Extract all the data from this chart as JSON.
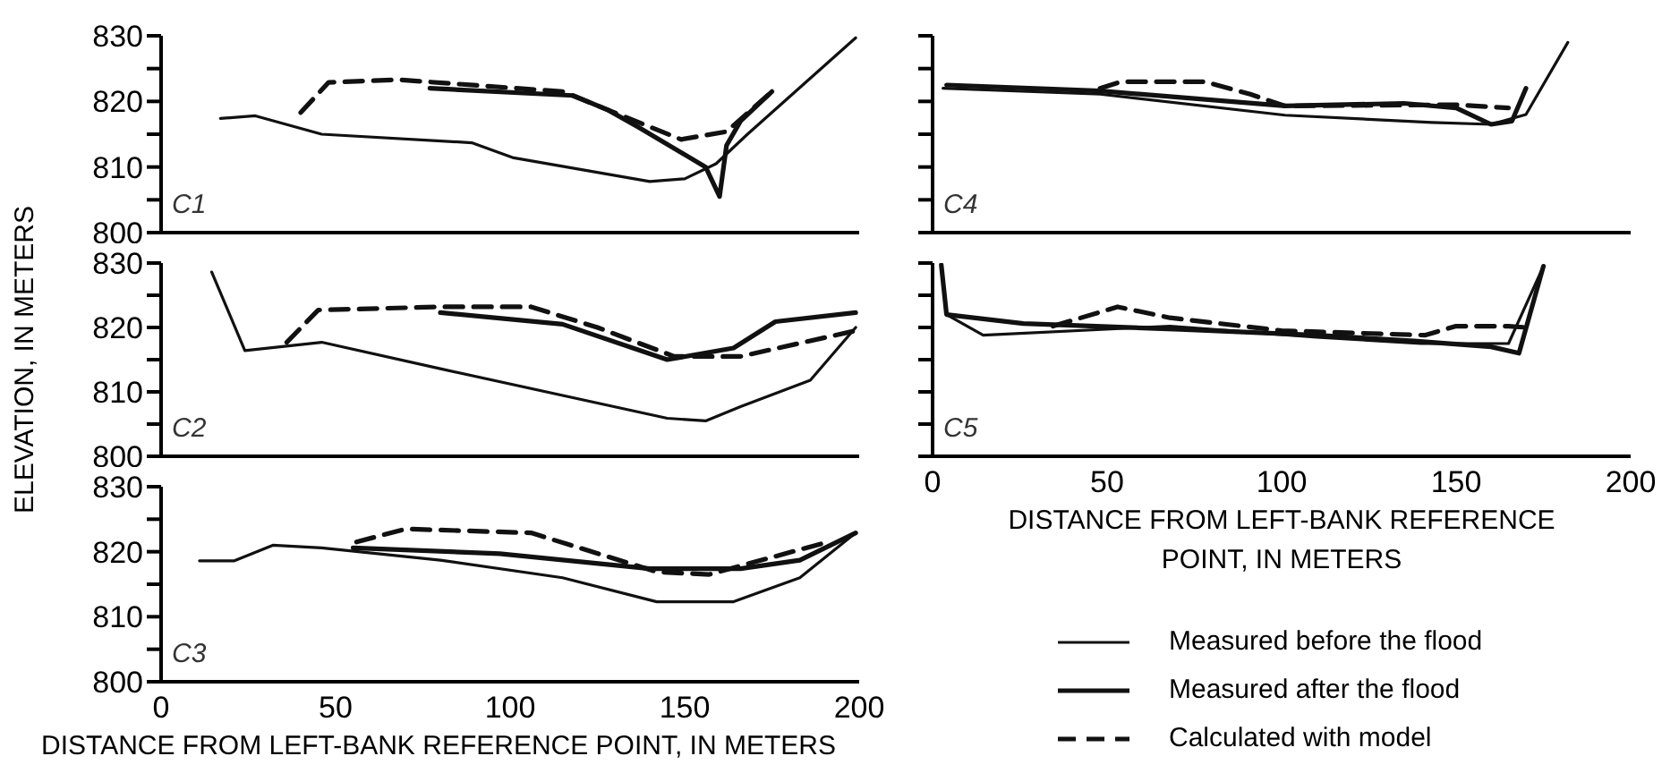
{
  "chart_data": [
    {
      "type": "line",
      "title": "C1",
      "xlim": [
        0,
        200
      ],
      "xticks": [
        0,
        50,
        100,
        150,
        200
      ],
      "ylim": [
        800,
        830
      ],
      "yticks": [
        800,
        {
          "value": 805,
          "label": null
        },
        810,
        {
          "value": 815,
          "label": null
        },
        820,
        {
          "value": 825,
          "label": null
        },
        830
      ],
      "tick_labels": "y",
      "series": [
        {
          "color": "#111111",
          "line_style": "solid",
          "x": [
            17,
            27,
            46,
            89,
            101,
            140,
            150,
            159,
            168,
            199
          ],
          "values": [
            817.4,
            817.8,
            815,
            813.7,
            811.4,
            807.8,
            808.2,
            810.5,
            815,
            829.7
          ]
        },
        {
          "color": "#111111",
          "line_style": "solid",
          "x": [
            77,
            118,
            128,
            137,
            156,
            160,
            162,
            166,
            175
          ],
          "values": [
            822,
            820.9,
            818.7,
            816,
            810,
            805.5,
            813.3,
            817,
            821.5
          ]
        },
        {
          "color": "#111111",
          "line_style": "dashed",
          "x": [
            40,
            48,
            68,
            115,
            128,
            149,
            162,
            175
          ],
          "values": [
            818.3,
            822.9,
            823.3,
            821.5,
            818.7,
            814.2,
            815.4,
            821.5
          ]
        }
      ]
    },
    {
      "type": "line",
      "title": "C2",
      "ylabel": "ELEVATION, IN METERS",
      "xlim": [
        0,
        200
      ],
      "xticks": [
        0,
        50,
        100,
        150,
        200
      ],
      "ylim": [
        800,
        830
      ],
      "yticks": [
        800,
        {
          "value": 805,
          "label": null
        },
        810,
        {
          "value": 815,
          "label": null
        },
        820,
        {
          "value": 825,
          "label": null
        },
        830
      ],
      "tick_labels": "y",
      "series": [
        {
          "color": "#111111",
          "line_style": "solid",
          "x": [
            14.5,
            24,
            46,
            80,
            145,
            156,
            166,
            186,
            199
          ],
          "values": [
            828.6,
            816.4,
            817.7,
            813.6,
            805.9,
            805.5,
            807.7,
            811.8,
            820
          ]
        },
        {
          "color": "#111111",
          "line_style": "solid",
          "x": [
            80,
            115,
            145,
            164,
            176,
            199
          ],
          "values": [
            822.3,
            820.5,
            815,
            816.8,
            820.9,
            822.3
          ]
        },
        {
          "color": "#111111",
          "line_style": "dashed",
          "x": [
            36,
            45,
            80,
            106,
            125,
            147,
            166,
            199
          ],
          "values": [
            817.7,
            822.7,
            823.2,
            823.2,
            820,
            815.5,
            815.5,
            819.5
          ]
        }
      ]
    },
    {
      "type": "line",
      "title": "C3",
      "xlabel": "DISTANCE FROM LEFT-BANK REFERENCE POINT, IN METERS",
      "xlim": [
        0,
        200
      ],
      "xticks": [
        0,
        50,
        100,
        150,
        200
      ],
      "ylim": [
        800,
        830
      ],
      "yticks": [
        800,
        {
          "value": 805,
          "label": null
        },
        810,
        {
          "value": 815,
          "label": null
        },
        820,
        {
          "value": 825,
          "label": null
        },
        830
      ],
      "series": [
        {
          "color": "#111111",
          "line_style": "solid",
          "x": [
            11,
            21,
            32,
            46,
            80,
            115,
            142,
            164,
            183,
            199
          ],
          "values": [
            818.6,
            818.6,
            821,
            820.6,
            818.7,
            816,
            812.3,
            812.3,
            816,
            822.9
          ]
        },
        {
          "color": "#111111",
          "line_style": "solid",
          "x": [
            55,
            97,
            140,
            166,
            183,
            199
          ],
          "values": [
            820.6,
            819.7,
            817.4,
            817.4,
            818.7,
            822.9
          ]
        },
        {
          "color": "#111111",
          "line_style": "dashed",
          "x": [
            56,
            70,
            106,
            142,
            157,
            191
          ],
          "values": [
            821.5,
            823.5,
            822.9,
            816.9,
            816.5,
            821.5
          ]
        }
      ]
    },
    {
      "type": "line",
      "title": "C4",
      "xlim": [
        0,
        200
      ],
      "xticks": [
        0,
        50,
        100,
        150,
        200
      ],
      "ylim": [
        800,
        830
      ],
      "yticks": [
        800,
        {
          "value": 805,
          "label": null
        },
        810,
        {
          "value": 815,
          "label": null
        },
        820,
        {
          "value": 825,
          "label": null
        },
        830
      ],
      "tick_labels": false,
      "series": [
        {
          "color": "#111111",
          "line_style": "solid",
          "x": [
            3,
            48,
            101,
            143,
            160,
            170,
            182
          ],
          "values": [
            822,
            821.1,
            817.9,
            816.8,
            816.5,
            818,
            829
          ]
        },
        {
          "color": "#111111",
          "line_style": "solid",
          "x": [
            4,
            48,
            101,
            135,
            150,
            160,
            166,
            170
          ],
          "values": [
            822.5,
            821.6,
            819.3,
            819.7,
            819,
            816.5,
            817,
            822
          ]
        },
        {
          "color": "#111111",
          "line_style": "dashed",
          "x": [
            48,
            54,
            78,
            91,
            101,
            150,
            165
          ],
          "values": [
            822,
            823,
            823,
            821.1,
            819.3,
            819.5,
            819
          ]
        }
      ]
    },
    {
      "type": "line",
      "title": "C5",
      "xlabel": "DISTANCE FROM LEFT-BANK REFERENCE POINT, IN METERS",
      "xlim": [
        0,
        200
      ],
      "xticks": [
        0,
        50,
        100,
        150,
        200
      ],
      "ylim": [
        800,
        830
      ],
      "yticks": [
        800,
        {
          "value": 805,
          "label": null
        },
        810,
        {
          "value": 815,
          "label": null
        },
        820,
        {
          "value": 825,
          "label": null
        },
        830
      ],
      "tick_labels": "x",
      "legend": "bottom right",
      "series": [
        {
          "name": "Measured before the flood",
          "color": "#111111",
          "line_style": "solid",
          "x": [
            4,
            14.5,
            68,
            110,
            140,
            165,
            175
          ],
          "values": [
            822,
            818.8,
            820.2,
            818.5,
            817.5,
            817.5,
            829.5
          ]
        },
        {
          "name": "Measured after the flood",
          "color": "#111111",
          "line_style": "solid",
          "x": [
            2.5,
            4,
            26,
            71,
            110,
            138,
            160,
            168,
            175
          ],
          "values": [
            829.7,
            822,
            820.6,
            819.7,
            818.8,
            817.9,
            817,
            816,
            829.5
          ]
        },
        {
          "name": "Calculated with model",
          "color": "#111111",
          "line_style": "dashed",
          "x": [
            34.5,
            53,
            68,
            100,
            141,
            150,
            165,
            170
          ],
          "values": [
            820.2,
            823.2,
            821.5,
            819.5,
            818.8,
            820.2,
            820.2,
            820
          ]
        }
      ]
    }
  ]
}
